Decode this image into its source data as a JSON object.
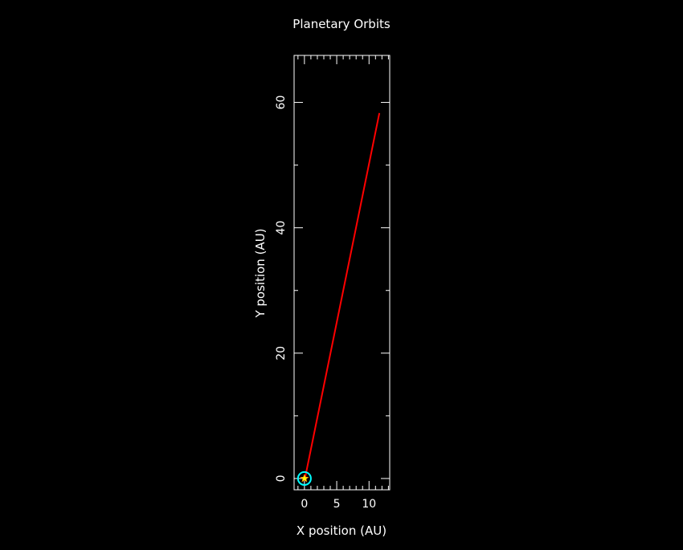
{
  "colors": {
    "background": "#000000",
    "foreground": "#ffffff",
    "trajectory": "#ff0000",
    "orbit": "#00ffff",
    "sun": "#ffff00"
  },
  "chart_data": {
    "type": "line",
    "title": "Planetary Orbits",
    "xlabel": "X position (AU)",
    "ylabel": "Y position (AU)",
    "xlim": [
      -1.6,
      13.2
    ],
    "ylim": [
      -1.8,
      67.5
    ],
    "x_ticks": [
      0,
      5,
      10
    ],
    "y_ticks": [
      0,
      20,
      40,
      60
    ],
    "x_tick_labels": [
      "0",
      "5",
      "10"
    ],
    "y_tick_labels": [
      "0",
      "20",
      "40",
      "60"
    ],
    "grid": false,
    "legend": "none",
    "series": [
      {
        "style": "line",
        "color": "#ff0000",
        "x": [
          0.1,
          11.6
        ],
        "y": [
          0.1,
          58.3
        ]
      }
    ],
    "orbits": [
      {
        "color": "#00ffff",
        "center": [
          0,
          0
        ],
        "radius": 1.0
      }
    ],
    "markers": [
      {
        "shape": "star",
        "color": "#ffff00",
        "x": 0,
        "y": 0
      }
    ]
  }
}
